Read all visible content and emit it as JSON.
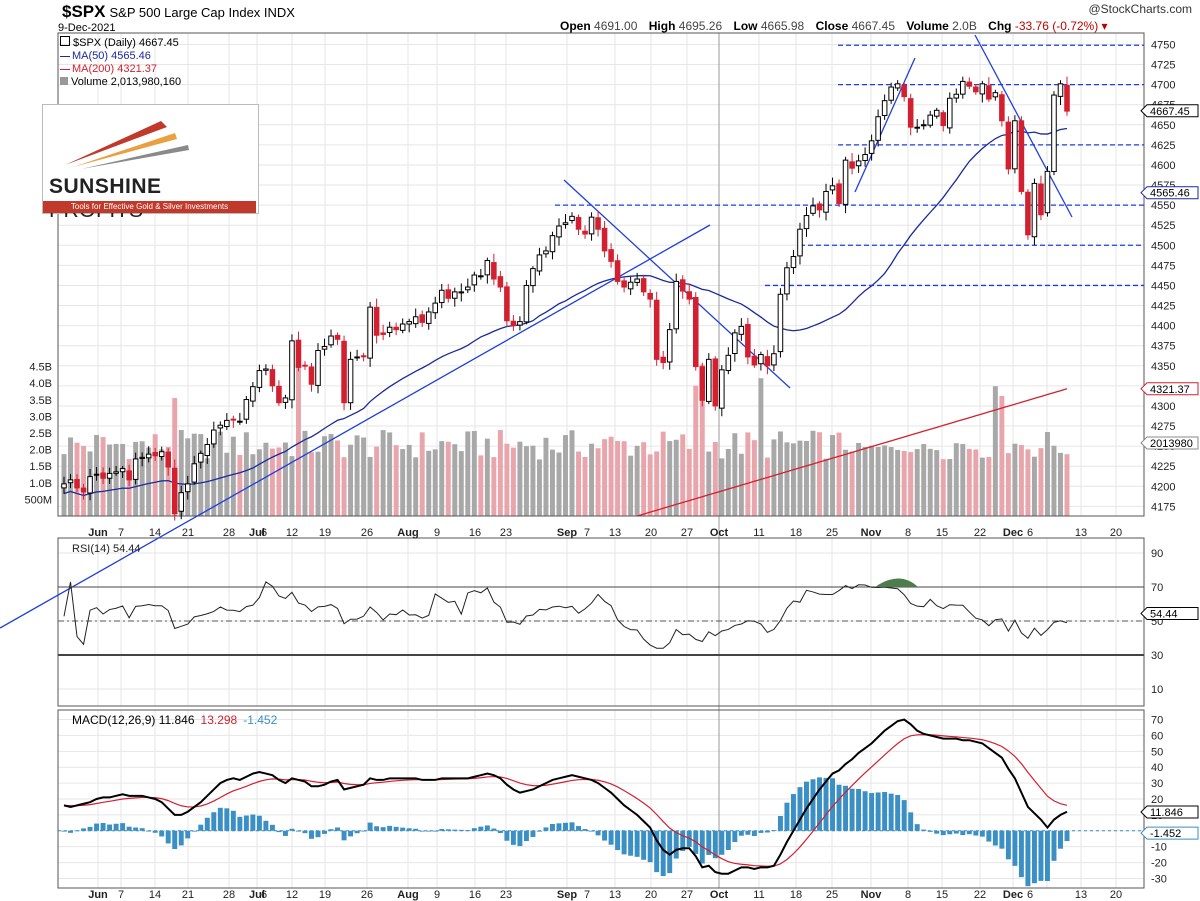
{
  "header": {
    "symbol": "$SPX",
    "name": "S&P 500 Large Cap Index INDX",
    "date": "9-Dec-2021",
    "brand": "@StockCharts.com",
    "open_label": "Open",
    "open": "4691.00",
    "high_label": "High",
    "high": "4695.26",
    "low_label": "Low",
    "low": "4665.98",
    "close_label": "Close",
    "close": "4667.45",
    "volume_label": "Volume",
    "volume": "2.0B",
    "chg_label": "Chg",
    "chg": "-33.76 (-0.72%)"
  },
  "legend": {
    "daily": "$SPX (Daily) 4667.45",
    "ma50": "MA(50) 4565.46",
    "ma200": "MA(200) 4321.37",
    "volume": "Volume 2,013,980,160"
  },
  "logo": {
    "title_bold": "SUNSHINE",
    "title_thin": "PROFITS",
    "tagline": "Tools for Effective Gold & Silver Investments"
  },
  "colors": {
    "up": "#000000",
    "down": "#d22030",
    "ma50": "#1a2a9c",
    "ma200": "#d22030",
    "trend": "#1f3fdc",
    "vol_up": "#a8a8a8",
    "vol_down": "#e8a6ac",
    "macd_hist": "#3a8fc4",
    "rsi_fill": "#4d7c4d"
  },
  "chart_data": [
    {
      "type": "candlestick",
      "title": "$SPX S&P 500 Large Cap Index INDX (Daily)",
      "x_ticks": [
        "Jun",
        "7",
        "14",
        "21",
        "28",
        "Jul",
        "6",
        "12",
        "19",
        "26",
        "Aug",
        "9",
        "16",
        "23",
        "Sep",
        "7",
        "13",
        "20",
        "27",
        "Oct",
        "11",
        "18",
        "25",
        "Nov",
        "8",
        "15",
        "22",
        "Dec",
        "6",
        "13",
        "20"
      ],
      "y_ticks": [
        4175,
        4200,
        4225,
        4250,
        4275,
        4300,
        4325,
        4350,
        4375,
        4400,
        4425,
        4450,
        4475,
        4500,
        4525,
        4550,
        4575,
        4600,
        4625,
        4650,
        4675,
        4700,
        4725,
        4750
      ],
      "ylim": [
        4163,
        4763
      ],
      "last_close": 4667.45,
      "ma50_last": 4565.46,
      "ma200_last": 4321.37,
      "closes": [
        4203,
        4208,
        4198,
        4193,
        4212,
        4215,
        4210,
        4216,
        4218,
        4222,
        4208,
        4234,
        4236,
        4240,
        4238,
        4243,
        4224,
        4166,
        4192,
        4203,
        4228,
        4241,
        4252,
        4270,
        4276,
        4282,
        4283,
        4281,
        4308,
        4324,
        4344,
        4346,
        4325,
        4304,
        4310,
        4381,
        4348,
        4350,
        4327,
        4369,
        4374,
        4387,
        4383,
        4304,
        4358,
        4361,
        4362,
        4423,
        4388,
        4389,
        4398,
        4395,
        4402,
        4405,
        4411,
        4404,
        4417,
        4428,
        4444,
        4434,
        4442,
        4442,
        4448,
        4463,
        4462,
        4481,
        4458,
        4448,
        4406,
        4400,
        4405,
        4450,
        4471,
        4488,
        4493,
        4512,
        4524,
        4528,
        4536,
        4520,
        4514,
        4535,
        4520,
        4493,
        4480,
        4455,
        4448,
        4454,
        4458,
        4442,
        4433,
        4358,
        4354,
        4395,
        4455,
        4443,
        4433,
        4349,
        4307,
        4358,
        4300,
        4345,
        4363,
        4391,
        4399,
        4361,
        4351,
        4364,
        4350,
        4365,
        4439,
        4472,
        4486,
        4520,
        4537,
        4549,
        4544,
        4567,
        4574,
        4552,
        4606,
        4596,
        4605,
        4613,
        4630,
        4660,
        4680,
        4697,
        4701,
        4685,
        4647,
        4647,
        4650,
        4662,
        4668,
        4649,
        4683,
        4688,
        4704,
        4698,
        4691,
        4701,
        4682,
        4690,
        4655,
        4595,
        4655,
        4567,
        4513,
        4577,
        4538,
        4592,
        4687,
        4701,
        4667
      ],
      "volume_ticks": [
        "500M",
        "1.0B",
        "1.5B",
        "2.0B",
        "2.5B",
        "3.0B",
        "3.5B",
        "4.0B",
        "4.5B"
      ],
      "volume_last": "2013980",
      "volume_range": [
        0,
        5000000000
      ]
    },
    {
      "type": "line",
      "title": "RSI(14) 54.44",
      "y_ticks": [
        10,
        30,
        50,
        70,
        90
      ],
      "ylim": [
        0,
        100
      ],
      "levels": [
        30,
        50,
        70
      ],
      "last": "54.44"
    },
    {
      "type": "line",
      "title": "MACD(12,26,9)",
      "macd": "11.846",
      "signal": "13.298",
      "histogram": "-1.452",
      "y_ticks": [
        -30,
        -20,
        -10,
        0,
        10,
        20,
        30,
        40,
        50,
        60,
        70
      ],
      "ylim": [
        -36,
        76
      ],
      "last_macd": "11.846",
      "last_hist": "-1.452",
      "macd_values": [
        16,
        15,
        16,
        17,
        18,
        20,
        21,
        21,
        22,
        23,
        22,
        22,
        22,
        21,
        20,
        18,
        14,
        10,
        10,
        12,
        15,
        18,
        22,
        26,
        30,
        32,
        33,
        32,
        34,
        36,
        37,
        36,
        35,
        32,
        30,
        33,
        32,
        31,
        28,
        28,
        29,
        31,
        32,
        26,
        27,
        28,
        29,
        33,
        32,
        32,
        33,
        33,
        33,
        33,
        33,
        32,
        32,
        32,
        33,
        33,
        33,
        33,
        33,
        34,
        35,
        36,
        35,
        33,
        29,
        26,
        24,
        25,
        26,
        28,
        30,
        32,
        33,
        34,
        35,
        34,
        33,
        32,
        30,
        27,
        24,
        20,
        16,
        13,
        10,
        6,
        2,
        -6,
        -12,
        -15,
        -12,
        -11,
        -11,
        -16,
        -23,
        -22,
        -26,
        -27,
        -27,
        -25,
        -23,
        -23,
        -24,
        -23,
        -23,
        -22,
        -15,
        -7,
        0,
        7,
        14,
        20,
        26,
        31,
        36,
        38,
        42,
        45,
        49,
        52,
        55,
        59,
        63,
        66,
        69,
        70,
        67,
        63,
        61,
        60,
        59,
        58,
        58,
        58,
        57,
        57,
        56,
        55,
        52,
        49,
        46,
        39,
        33,
        24,
        15,
        11,
        7,
        2,
        7,
        10,
        12
      ]
    }
  ]
}
